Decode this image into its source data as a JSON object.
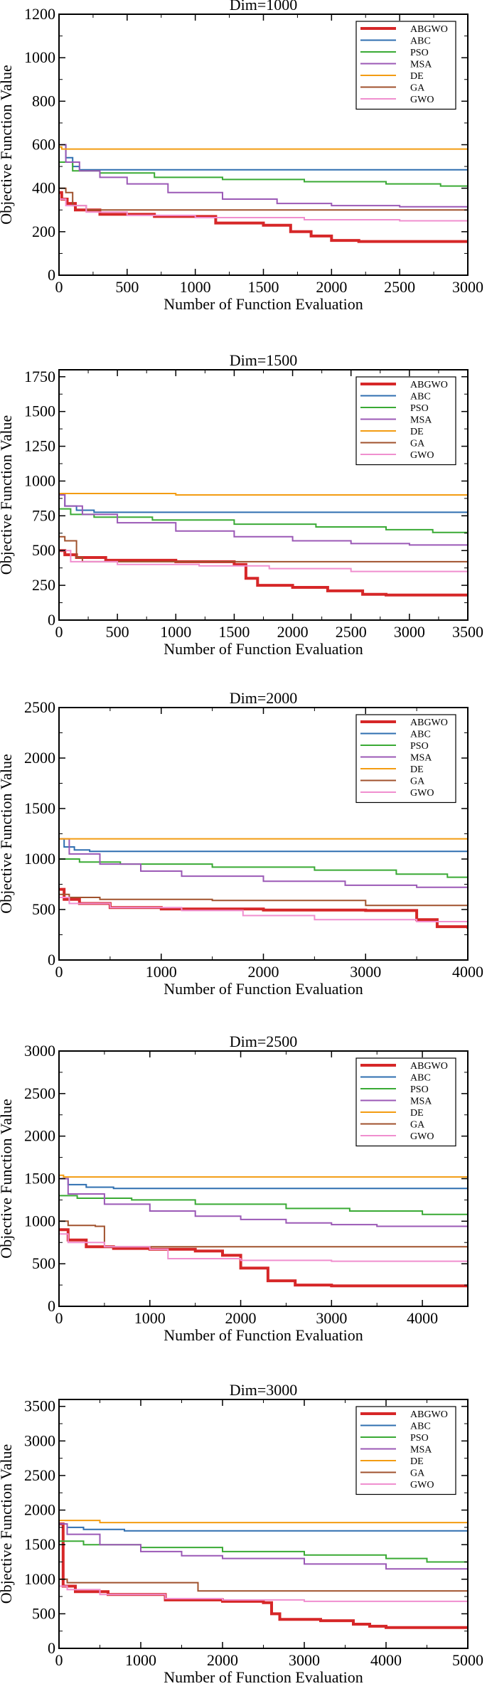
{
  "figure": {
    "colors": {
      "ABGWO": "#d62728",
      "ABC": "#2f6fb0",
      "PSO": "#3aaa35",
      "MSA": "#9b59b6",
      "DE": "#f39c12",
      "GA": "#a0522d",
      "GWO": "#f08fcf"
    }
  },
  "chart_data": [
    {
      "type": "line",
      "title": "Dim=1000",
      "xlabel": "Number of Function Evaluation",
      "ylabel": "Objective Function Value",
      "xlim": [
        0,
        3000
      ],
      "ylim": [
        0,
        1200
      ],
      "xticks": [
        0,
        500,
        1000,
        1500,
        2000,
        2500,
        3000
      ],
      "yticks": [
        0,
        200,
        400,
        600,
        800,
        1000,
        1200
      ],
      "xtick_labels": [
        "0",
        "500",
        "1000",
        "1500",
        "2000",
        "2500",
        "3000"
      ],
      "ytick_labels": [
        "0",
        "200",
        "400",
        "600",
        "800",
        "1000",
        "1200"
      ],
      "legend": "top-right",
      "series": [
        {
          "name": "ABGWO",
          "x": [
            0,
            20,
            60,
            120,
            300,
            700,
            1150,
            1500,
            1700,
            1850,
            2000,
            2200,
            3000
          ],
          "y": [
            380,
            350,
            330,
            300,
            280,
            270,
            240,
            230,
            200,
            180,
            160,
            155,
            155
          ]
        },
        {
          "name": "ABC",
          "x": [
            0,
            50,
            100,
            150,
            3000
          ],
          "y": [
            600,
            540,
            500,
            485,
            485
          ]
        },
        {
          "name": "PSO",
          "x": [
            0,
            100,
            300,
            700,
            1200,
            1800,
            2400,
            2800,
            3000
          ],
          "y": [
            520,
            480,
            470,
            450,
            440,
            430,
            420,
            410,
            400
          ]
        },
        {
          "name": "MSA",
          "x": [
            0,
            50,
            150,
            300,
            500,
            800,
            1200,
            1600,
            2000,
            2500,
            3000
          ],
          "y": [
            600,
            520,
            480,
            450,
            420,
            380,
            350,
            330,
            320,
            315,
            310
          ]
        },
        {
          "name": "DE",
          "x": [
            0,
            20,
            3000
          ],
          "y": [
            590,
            580,
            575
          ]
        },
        {
          "name": "GA",
          "x": [
            0,
            50,
            100,
            200,
            3000
          ],
          "y": [
            400,
            380,
            320,
            300,
            300
          ]
        },
        {
          "name": "GWO",
          "x": [
            0,
            50,
            200,
            500,
            1000,
            1800,
            2500,
            3000
          ],
          "y": [
            350,
            320,
            290,
            275,
            265,
            255,
            250,
            248
          ]
        }
      ]
    },
    {
      "type": "line",
      "title": "Dim=1500",
      "xlabel": "Number of Function Evaluation",
      "ylabel": "Objective Function Value",
      "xlim": [
        0,
        3500
      ],
      "ylim": [
        0,
        1800
      ],
      "xticks": [
        0,
        500,
        1000,
        1500,
        2000,
        2500,
        3000,
        3500
      ],
      "yticks": [
        0,
        250,
        500,
        750,
        1000,
        1250,
        1500,
        1750
      ],
      "xtick_labels": [
        "0",
        "500",
        "1000",
        "1500",
        "2000",
        "2500",
        "3000",
        "3500"
      ],
      "ytick_labels": [
        "0",
        "250",
        "500",
        "750",
        "1000",
        "1250",
        "1500",
        "1750"
      ],
      "legend": "top-right",
      "series": [
        {
          "name": "ABGWO",
          "x": [
            0,
            50,
            150,
            400,
            1000,
            1500,
            1600,
            1700,
            2000,
            2300,
            2600,
            2800,
            3500
          ],
          "y": [
            500,
            470,
            450,
            430,
            420,
            400,
            300,
            250,
            235,
            210,
            185,
            180,
            180
          ]
        },
        {
          "name": "ABC",
          "x": [
            0,
            50,
            150,
            300,
            3500
          ],
          "y": [
            900,
            820,
            790,
            775,
            775
          ]
        },
        {
          "name": "PSO",
          "x": [
            0,
            100,
            300,
            800,
            1500,
            2200,
            2800,
            3200,
            3500
          ],
          "y": [
            800,
            760,
            740,
            720,
            690,
            670,
            650,
            630,
            620
          ]
        },
        {
          "name": "MSA",
          "x": [
            0,
            50,
            200,
            500,
            1000,
            1500,
            2000,
            2500,
            3000,
            3500
          ],
          "y": [
            900,
            820,
            760,
            700,
            640,
            600,
            570,
            550,
            540,
            530
          ]
        },
        {
          "name": "DE",
          "x": [
            0,
            1000,
            3500
          ],
          "y": [
            910,
            900,
            890
          ]
        },
        {
          "name": "GA",
          "x": [
            0,
            50,
            150,
            200,
            3500
          ],
          "y": [
            600,
            570,
            450,
            420,
            420
          ]
        },
        {
          "name": "GWO",
          "x": [
            0,
            100,
            500,
            1200,
            1800,
            2500,
            3500
          ],
          "y": [
            500,
            420,
            400,
            390,
            370,
            350,
            350
          ]
        }
      ]
    },
    {
      "type": "line",
      "title": "Dim=2000",
      "xlabel": "Number of Function Evaluation",
      "ylabel": "Objective Function Value",
      "xlim": [
        0,
        4000
      ],
      "ylim": [
        0,
        2500
      ],
      "xticks": [
        0,
        1000,
        2000,
        3000,
        4000
      ],
      "yticks": [
        0,
        500,
        1000,
        1500,
        2000,
        2500
      ],
      "xtick_labels": [
        "0",
        "1000",
        "2000",
        "3000",
        "4000"
      ],
      "ytick_labels": [
        "0",
        "500",
        "1000",
        "1500",
        "2000",
        "2500"
      ],
      "legend": "top-right",
      "series": [
        {
          "name": "ABGWO",
          "x": [
            0,
            50,
            200,
            500,
            1000,
            2000,
            3000,
            3400,
            3500,
            3700,
            4000
          ],
          "y": [
            700,
            600,
            560,
            520,
            505,
            495,
            490,
            490,
            400,
            330,
            310
          ]
        },
        {
          "name": "ABC",
          "x": [
            0,
            50,
            150,
            300,
            4000
          ],
          "y": [
            1200,
            1120,
            1090,
            1075,
            1075
          ]
        },
        {
          "name": "PSO",
          "x": [
            0,
            200,
            600,
            1500,
            2500,
            3300,
            3800,
            4000
          ],
          "y": [
            1000,
            970,
            950,
            920,
            890,
            850,
            820,
            800
          ]
        },
        {
          "name": "MSA",
          "x": [
            0,
            100,
            400,
            800,
            1200,
            2000,
            2800,
            3500,
            4000
          ],
          "y": [
            1200,
            1050,
            950,
            880,
            830,
            780,
            740,
            720,
            710
          ]
        },
        {
          "name": "DE",
          "x": [
            0,
            4000
          ],
          "y": [
            1200,
            1200
          ]
        },
        {
          "name": "GA",
          "x": [
            0,
            100,
            400,
            1500,
            3000,
            4000
          ],
          "y": [
            650,
            620,
            600,
            590,
            540,
            540
          ]
        },
        {
          "name": "GWO",
          "x": [
            0,
            100,
            500,
            1200,
            1800,
            2500,
            3500,
            4000
          ],
          "y": [
            620,
            560,
            520,
            490,
            440,
            400,
            380,
            380
          ]
        }
      ]
    },
    {
      "type": "line",
      "title": "Dim=2500",
      "xlabel": "Number of Function Evaluation",
      "ylabel": "Objective Function Value",
      "xlim": [
        0,
        4500
      ],
      "ylim": [
        0,
        3000
      ],
      "xticks": [
        0,
        1000,
        2000,
        3000,
        4000
      ],
      "yticks": [
        0,
        500,
        1000,
        1500,
        2000,
        2500,
        3000
      ],
      "xtick_labels": [
        "0",
        "1000",
        "2000",
        "3000",
        "4000"
      ],
      "ytick_labels": [
        "0",
        "500",
        "1000",
        "1500",
        "2000",
        "2500",
        "3000"
      ],
      "legend": "top-right",
      "series": [
        {
          "name": "ABGWO",
          "x": [
            0,
            100,
            300,
            600,
            1000,
            1500,
            1800,
            2000,
            2300,
            2600,
            3000,
            4500
          ],
          "y": [
            900,
            780,
            700,
            680,
            670,
            650,
            600,
            450,
            300,
            250,
            240,
            230
          ]
        },
        {
          "name": "ABC",
          "x": [
            0,
            100,
            300,
            600,
            4500
          ],
          "y": [
            1500,
            1430,
            1400,
            1385,
            1385
          ]
        },
        {
          "name": "PSO",
          "x": [
            0,
            200,
            800,
            1500,
            2500,
            3200,
            4000,
            4500
          ],
          "y": [
            1300,
            1270,
            1250,
            1200,
            1150,
            1120,
            1080,
            1050
          ]
        },
        {
          "name": "MSA",
          "x": [
            0,
            100,
            500,
            1000,
            1500,
            2000,
            2500,
            3000,
            3500,
            4500
          ],
          "y": [
            1500,
            1320,
            1200,
            1120,
            1060,
            1020,
            980,
            960,
            940,
            930
          ]
        },
        {
          "name": "DE",
          "x": [
            0,
            50,
            4500
          ],
          "y": [
            1540,
            1520,
            1520
          ]
        },
        {
          "name": "GA",
          "x": [
            0,
            100,
            400,
            500,
            4500
          ],
          "y": [
            1000,
            950,
            940,
            700,
            690
          ]
        },
        {
          "name": "GWO",
          "x": [
            0,
            100,
            500,
            1000,
            1200,
            2000,
            3000,
            4500
          ],
          "y": [
            850,
            750,
            700,
            670,
            560,
            540,
            530,
            530
          ]
        }
      ]
    },
    {
      "type": "line",
      "title": "Dim=3000",
      "xlabel": "Number of Function Evaluation",
      "ylabel": "Objective Function Value",
      "xlim": [
        0,
        5000
      ],
      "ylim": [
        0,
        3600
      ],
      "xticks": [
        0,
        1000,
        2000,
        3000,
        4000,
        5000
      ],
      "yticks": [
        0,
        500,
        1000,
        1500,
        2000,
        2500,
        3000,
        3500
      ],
      "xtick_labels": [
        "0",
        "1000",
        "2000",
        "3000",
        "4000",
        "5000"
      ],
      "ytick_labels": [
        "0",
        "500",
        "1000",
        "1500",
        "2000",
        "2500",
        "3000",
        "3500"
      ],
      "legend": "top-right",
      "series": [
        {
          "name": "ABGWO",
          "x": [
            0,
            50,
            200,
            600,
            1300,
            2000,
            2500,
            2600,
            2700,
            3200,
            3600,
            3800,
            4000,
            5000
          ],
          "y": [
            1800,
            900,
            820,
            780,
            700,
            680,
            660,
            500,
            420,
            400,
            350,
            320,
            300,
            300
          ]
        },
        {
          "name": "ABC",
          "x": [
            0,
            100,
            300,
            800,
            5000
          ],
          "y": [
            1800,
            1750,
            1720,
            1700,
            1700
          ]
        },
        {
          "name": "PSO",
          "x": [
            0,
            300,
            1000,
            2000,
            3000,
            4000,
            4500,
            5000
          ],
          "y": [
            1550,
            1500,
            1460,
            1400,
            1350,
            1300,
            1250,
            1220
          ]
        },
        {
          "name": "MSA",
          "x": [
            0,
            100,
            500,
            1000,
            1500,
            2000,
            3000,
            4000,
            5000
          ],
          "y": [
            1800,
            1650,
            1500,
            1400,
            1340,
            1300,
            1220,
            1150,
            1100
          ]
        },
        {
          "name": "DE",
          "x": [
            0,
            500,
            5000
          ],
          "y": [
            1850,
            1820,
            1820
          ]
        },
        {
          "name": "GA",
          "x": [
            0,
            100,
            600,
            1600,
            1700,
            5000
          ],
          "y": [
            1000,
            950,
            950,
            950,
            830,
            830
          ]
        },
        {
          "name": "GWO",
          "x": [
            0,
            100,
            500,
            1300,
            2000,
            3000,
            5000
          ],
          "y": [
            900,
            850,
            780,
            720,
            700,
            680,
            680
          ]
        }
      ]
    }
  ]
}
